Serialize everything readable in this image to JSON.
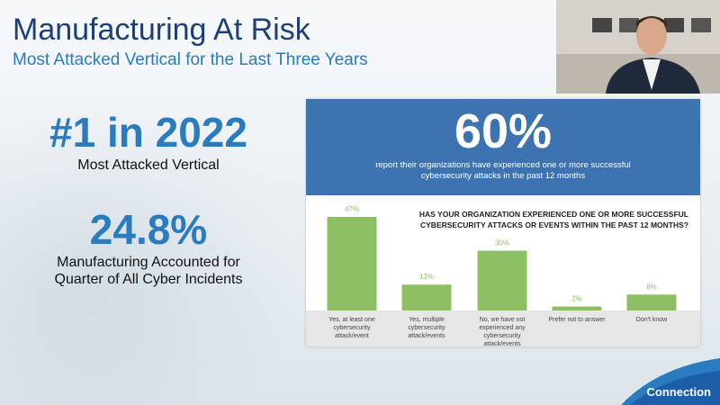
{
  "slide": {
    "title": "Manufacturing At Risk",
    "subtitle": "Most Attacked Vertical for the Last Three Years",
    "stat1": {
      "value": "#1 in 2022",
      "caption": "Most Attacked Vertical"
    },
    "stat2": {
      "value": "24.8%",
      "caption_line1": "Manufacturing Accounted for",
      "caption_line2": "Quarter of All Cyber Incidents"
    },
    "logo": "Connection"
  },
  "infographic": {
    "headline": "60%",
    "desc_line1": "report their organizations have experienced one or more successful",
    "desc_line2": "cybersecurity attacks in the past 12 months",
    "colors": {
      "header": "#3c73b0",
      "bars": "#8cc063",
      "labels": "#8cc063"
    }
  },
  "chart_data": {
    "type": "bar",
    "title_line1": "HAS YOUR ORGANIZATION EXPERIENCED ONE OR MORE SUCCESSFUL",
    "title_line2": "CYBERSECURITY ATTACKS OR EVENTS WITHIN THE PAST 12 MONTHS?",
    "categories": [
      [
        "Yes, at least one",
        "cybersecurity",
        "attack/event"
      ],
      [
        "Yes, multiple",
        "cybersecurity",
        "attack/events"
      ],
      [
        "No, we have not",
        "experienced any",
        "cybersecurity",
        "attack/events"
      ],
      [
        "Prefer not to answer"
      ],
      [
        "Don't know"
      ]
    ],
    "values": [
      47,
      13,
      30,
      2,
      8
    ],
    "data_labels": [
      "47%",
      "13%",
      "30%",
      "2%",
      "8%"
    ],
    "ylim": [
      0,
      50
    ],
    "grid": false
  }
}
